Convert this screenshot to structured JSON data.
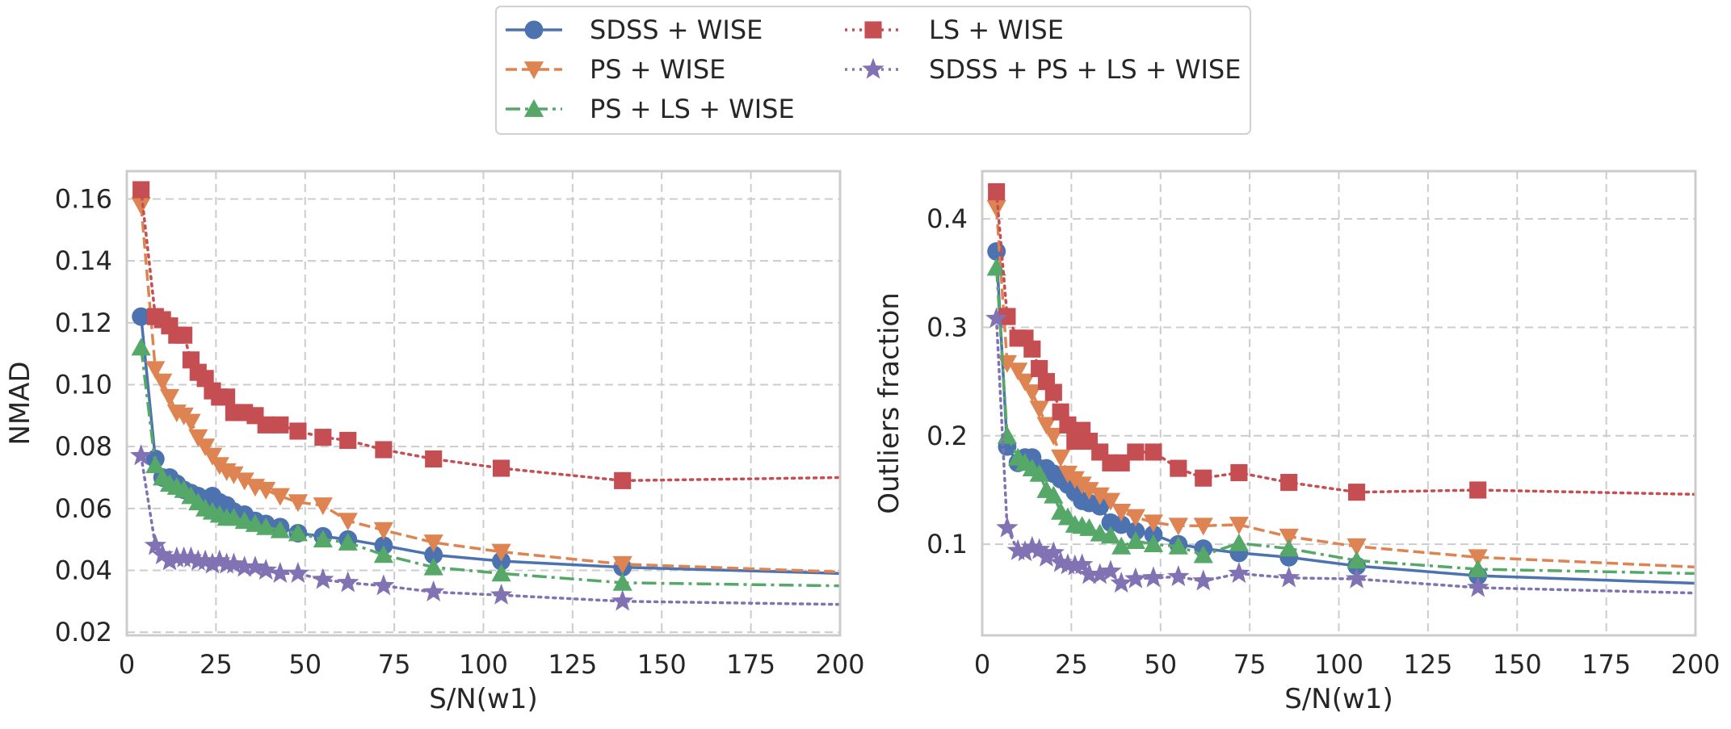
{
  "legend": {
    "columns": 2,
    "entries": [
      {
        "label": "SDSS + WISE",
        "color": "#4c72b0",
        "marker": "circle",
        "line": "solid"
      },
      {
        "label": "PS + WISE",
        "color": "#dd8452",
        "marker": "triangle-down",
        "line": "dashed"
      },
      {
        "label": "PS + LS + WISE",
        "color": "#55a868",
        "marker": "triangle-up",
        "line": "dashdot"
      },
      {
        "label": "LS + WISE",
        "color": "#c44e52",
        "marker": "square",
        "line": "dotted"
      },
      {
        "label": "SDSS + PS + LS + WISE",
        "color": "#8172b3",
        "marker": "star",
        "line": "dotted"
      }
    ]
  },
  "chart_data": [
    {
      "type": "line",
      "xlabel": "S/N(w1)",
      "ylabel": "NMAD",
      "xlim": [
        0,
        200
      ],
      "ylim": [
        0.019,
        0.169
      ],
      "xticks": [
        0,
        25,
        50,
        75,
        100,
        125,
        150,
        175,
        200
      ],
      "yticks": [
        0.02,
        0.04,
        0.06,
        0.08,
        0.1,
        0.12,
        0.14,
        0.16
      ],
      "ytick_labels": [
        "0.02",
        "0.04",
        "0.06",
        "0.08",
        "0.10",
        "0.12",
        "0.14",
        "0.16"
      ],
      "grid": true,
      "series": [
        {
          "name": "SDSS + WISE",
          "x": [
            4,
            8,
            10,
            12,
            14,
            16,
            18,
            20,
            22,
            24,
            26,
            28,
            30,
            33,
            36,
            39,
            43,
            48,
            55,
            62,
            72,
            86,
            105,
            139,
            200
          ],
          "y": [
            0.122,
            0.076,
            0.07,
            0.07,
            0.068,
            0.066,
            0.065,
            0.064,
            0.063,
            0.064,
            0.062,
            0.061,
            0.059,
            0.058,
            0.056,
            0.055,
            0.054,
            0.052,
            0.051,
            0.05,
            0.048,
            0.045,
            0.043,
            0.041,
            0.039
          ]
        },
        {
          "name": "PS + WISE",
          "x": [
            4,
            8,
            10,
            12,
            14,
            16,
            18,
            20,
            22,
            24,
            26,
            28,
            30,
            33,
            36,
            39,
            43,
            48,
            55,
            62,
            72,
            86,
            105,
            139,
            200
          ],
          "y": [
            0.158,
            0.105,
            0.101,
            0.096,
            0.091,
            0.09,
            0.088,
            0.083,
            0.08,
            0.077,
            0.074,
            0.072,
            0.071,
            0.069,
            0.067,
            0.066,
            0.064,
            0.062,
            0.061,
            0.056,
            0.053,
            0.049,
            0.046,
            0.042,
            0.0395
          ]
        },
        {
          "name": "PS + LS + WISE",
          "x": [
            4,
            8,
            10,
            12,
            14,
            16,
            18,
            20,
            22,
            24,
            26,
            28,
            30,
            33,
            36,
            39,
            43,
            48,
            55,
            62,
            72,
            86,
            105,
            139,
            200
          ],
          "y": [
            0.112,
            0.074,
            0.07,
            0.068,
            0.067,
            0.066,
            0.064,
            0.062,
            0.06,
            0.059,
            0.058,
            0.057,
            0.057,
            0.056,
            0.055,
            0.054,
            0.053,
            0.052,
            0.05,
            0.049,
            0.045,
            0.041,
            0.039,
            0.036,
            0.035
          ]
        },
        {
          "name": "LS + WISE",
          "x": [
            4,
            8,
            10,
            12,
            14,
            16,
            18,
            20,
            22,
            24,
            26,
            28,
            30,
            33,
            36,
            39,
            43,
            48,
            55,
            62,
            72,
            86,
            105,
            139,
            200
          ],
          "y": [
            0.163,
            0.122,
            0.121,
            0.119,
            0.116,
            0.116,
            0.108,
            0.104,
            0.102,
            0.098,
            0.096,
            0.096,
            0.091,
            0.091,
            0.09,
            0.087,
            0.087,
            0.085,
            0.083,
            0.082,
            0.079,
            0.076,
            0.073,
            0.069,
            0.07
          ]
        },
        {
          "name": "SDSS + PS + LS + WISE",
          "x": [
            4,
            8,
            10,
            12,
            14,
            16,
            18,
            20,
            22,
            24,
            26,
            28,
            30,
            33,
            36,
            39,
            43,
            48,
            55,
            62,
            72,
            86,
            105,
            139,
            200
          ],
          "y": [
            0.077,
            0.048,
            0.045,
            0.043,
            0.044,
            0.044,
            0.044,
            0.043,
            0.043,
            0.042,
            0.043,
            0.042,
            0.042,
            0.041,
            0.041,
            0.04,
            0.039,
            0.039,
            0.037,
            0.036,
            0.035,
            0.033,
            0.032,
            0.03,
            0.029
          ]
        }
      ]
    },
    {
      "type": "line",
      "xlabel": "S/N(w1)",
      "ylabel": "Outliers fraction",
      "xlim": [
        0,
        200
      ],
      "ylim": [
        0.016,
        0.444
      ],
      "xticks": [
        0,
        25,
        50,
        75,
        100,
        125,
        150,
        175,
        200
      ],
      "yticks": [
        0.1,
        0.2,
        0.3,
        0.4
      ],
      "ytick_labels": [
        "0.1",
        "0.2",
        "0.3",
        "0.4"
      ],
      "grid": true,
      "series": [
        {
          "name": "SDSS + WISE",
          "x": [
            4,
            7,
            10,
            12,
            14,
            16,
            18,
            20,
            22,
            24,
            26,
            28,
            30,
            33,
            36,
            39,
            43,
            48,
            55,
            62,
            72,
            86,
            105,
            139,
            200
          ],
          "y": [
            0.37,
            0.19,
            0.175,
            0.18,
            0.18,
            0.17,
            0.17,
            0.165,
            0.16,
            0.155,
            0.148,
            0.14,
            0.138,
            0.135,
            0.12,
            0.118,
            0.112,
            0.109,
            0.1,
            0.096,
            0.092,
            0.088,
            0.08,
            0.071,
            0.064
          ]
        },
        {
          "name": "PS + WISE",
          "x": [
            4,
            7,
            10,
            12,
            14,
            16,
            18,
            20,
            22,
            24,
            26,
            28,
            30,
            33,
            36,
            39,
            43,
            48,
            55,
            62,
            72,
            86,
            105,
            139,
            200
          ],
          "y": [
            0.41,
            0.267,
            0.26,
            0.25,
            0.24,
            0.225,
            0.21,
            0.2,
            0.18,
            0.165,
            0.16,
            0.155,
            0.15,
            0.145,
            0.14,
            0.13,
            0.125,
            0.12,
            0.117,
            0.117,
            0.118,
            0.107,
            0.098,
            0.088,
            0.079
          ]
        },
        {
          "name": "PS + LS + WISE",
          "x": [
            4,
            7,
            10,
            12,
            14,
            16,
            18,
            20,
            22,
            24,
            26,
            28,
            30,
            33,
            36,
            39,
            43,
            48,
            55,
            62,
            72,
            86,
            105,
            139,
            200
          ],
          "y": [
            0.355,
            0.2,
            0.18,
            0.175,
            0.17,
            0.165,
            0.15,
            0.145,
            0.13,
            0.125,
            0.118,
            0.117,
            0.115,
            0.11,
            0.108,
            0.098,
            0.103,
            0.1,
            0.098,
            0.09,
            0.101,
            0.096,
            0.085,
            0.077,
            0.073
          ]
        },
        {
          "name": "LS + WISE",
          "x": [
            4,
            7,
            10,
            12,
            14,
            16,
            18,
            20,
            22,
            24,
            26,
            28,
            30,
            33,
            36,
            39,
            43,
            48,
            55,
            62,
            72,
            86,
            105,
            139,
            200
          ],
          "y": [
            0.425,
            0.31,
            0.29,
            0.29,
            0.28,
            0.262,
            0.25,
            0.24,
            0.222,
            0.21,
            0.195,
            0.205,
            0.195,
            0.185,
            0.175,
            0.175,
            0.185,
            0.185,
            0.17,
            0.161,
            0.166,
            0.157,
            0.148,
            0.15,
            0.146
          ]
        },
        {
          "name": "SDSS + PS + LS + WISE",
          "x": [
            4,
            7,
            10,
            12,
            14,
            16,
            18,
            20,
            22,
            24,
            26,
            28,
            30,
            33,
            36,
            39,
            43,
            48,
            55,
            62,
            72,
            86,
            105,
            139,
            200
          ],
          "y": [
            0.308,
            0.115,
            0.094,
            0.093,
            0.097,
            0.095,
            0.088,
            0.092,
            0.083,
            0.081,
            0.08,
            0.081,
            0.072,
            0.072,
            0.075,
            0.064,
            0.068,
            0.069,
            0.07,
            0.066,
            0.073,
            0.069,
            0.068,
            0.06,
            0.055
          ]
        }
      ]
    }
  ]
}
